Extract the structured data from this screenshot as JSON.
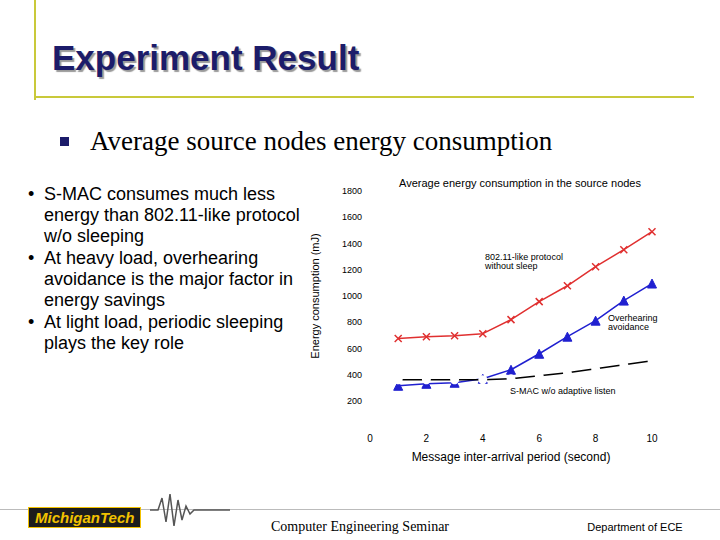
{
  "slide": {
    "title": "Experiment Result",
    "heading": "Average source nodes energy consumption",
    "bullets": [
      "S-MAC consumes much less energy than 802.11-like protocol w/o sleeping",
      "At heavy load, overhearing avoidance is the major factor in energy savings",
      "At light load, periodic sleeping plays the key role"
    ],
    "footer": {
      "logo": "MichiganTech",
      "center": "Computer Engineering Seminar",
      "right": "Department of ECE"
    }
  },
  "chart_data": {
    "type": "line",
    "title": "Average energy consumption in the source nodes",
    "x_label": "Message inter-arrival period (second)",
    "y_label": "Energy consumption (mJ)",
    "x": [
      1,
      2,
      3,
      4,
      5,
      6,
      7,
      8,
      9,
      10
    ],
    "series": [
      {
        "name": "802.11-like protocol without sleep",
        "color": "#e03030",
        "marker": "x",
        "values": [
          676,
          690,
          697,
          713,
          820,
          957,
          1078,
          1223,
          1353,
          1490
        ]
      },
      {
        "name": "Overhearing avoidance",
        "color": "#2020d0",
        "marker": "triangle",
        "values": [
          316,
          331,
          339,
          369,
          438,
          560,
          690,
          812,
          965,
          1095
        ]
      },
      {
        "name": "S-MAC w/o adaptive listen",
        "color": "#000000",
        "marker": "circle",
        "values": [
          362,
          362,
          362,
          362,
          369,
          392,
          415,
          446,
          476,
          507
        ]
      }
    ],
    "xlim": [
      0,
      10
    ],
    "xticks": [
      0,
      2,
      4,
      6,
      8,
      10
    ],
    "ylim": [
      200,
      1800
    ],
    "yticks": [
      200,
      400,
      600,
      800,
      1000,
      1200,
      1400,
      1600,
      1800
    ],
    "grid": false
  }
}
